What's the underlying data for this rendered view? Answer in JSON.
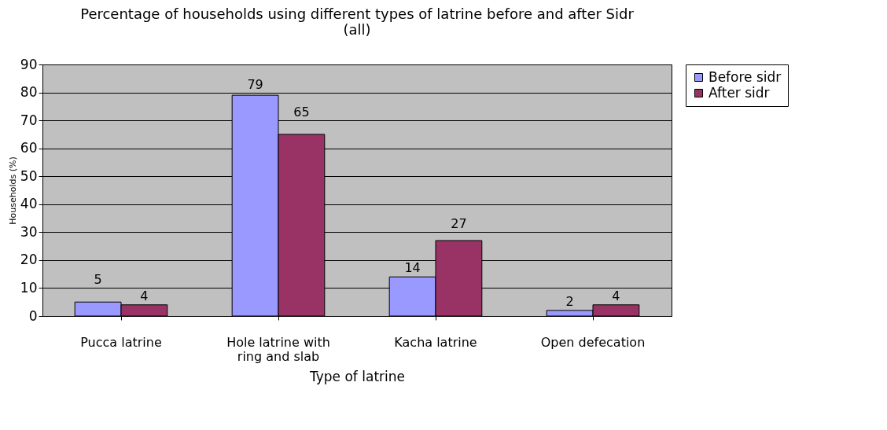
{
  "chart_data": {
    "type": "bar",
    "title": "Percentage of households using different types of latrine before and after Sidr (all)",
    "xlabel": "Type of latrine",
    "ylabel": "Households (%)",
    "categories": [
      "Pucca latrine",
      "Hole latrine with ring and slab",
      "Kacha latrine",
      "Open defecation"
    ],
    "series": [
      {
        "name": "Before sidr",
        "color": "#9999ff",
        "values": [
          5,
          79,
          14,
          2
        ]
      },
      {
        "name": "After sidr",
        "color": "#993366",
        "values": [
          4,
          65,
          27,
          4
        ]
      }
    ],
    "ylim": [
      0,
      90
    ],
    "yticks": [
      0,
      10,
      20,
      30,
      40,
      50,
      60,
      70,
      80,
      90
    ],
    "grid": "y",
    "legend": "right",
    "data_labels": true
  }
}
